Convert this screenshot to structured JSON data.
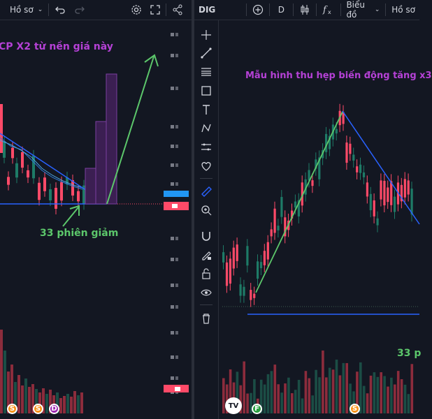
{
  "left_panel": {
    "toolbar": {
      "profile_label": "Hồ sơ"
    },
    "annotations": {
      "top_text": "CP X2 từ nền giá này",
      "bottom_text": "33 phiên giảm"
    },
    "event_badges": [
      "S",
      "S",
      "D"
    ],
    "colors": {
      "up": "#ff4a68",
      "down": "#1e7b67",
      "annotation_purple": "#b541d6",
      "annotation_green": "#5cc76b",
      "arrow_green": "#5cc76b",
      "trendline": "#2962ff",
      "projection": "#7b3fa0"
    }
  },
  "right_panel": {
    "toolbar": {
      "symbol": "DIG",
      "interval": "D",
      "chart_type_label": "Biểu đồ",
      "profile_label": "Hồ sơ"
    },
    "drawing_tools": [
      "crosshair-icon",
      "trendline-icon",
      "fib-icon",
      "rectangle-icon",
      "text-icon",
      "pattern-icon",
      "measure-icon",
      "heart-icon",
      "ruler-icon",
      "zoom-icon",
      "magnet-icon",
      "lock-draw-icon",
      "unlock-icon",
      "eye-icon",
      "trash-icon"
    ],
    "annotations": {
      "top_text": "Mẫu hình thu hẹp biến động tăng x3",
      "bottom_text": "33 p"
    },
    "event_badges": [
      "F",
      "S"
    ],
    "logo_text": "TV"
  }
}
